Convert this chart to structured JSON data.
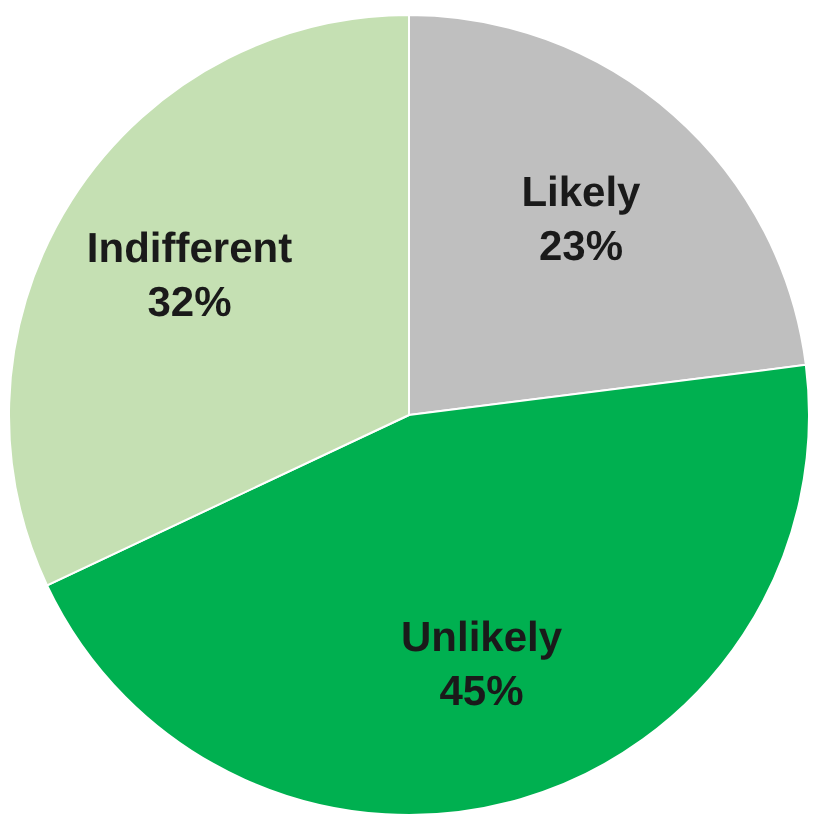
{
  "chart_data": {
    "type": "pie",
    "categories": [
      "Likely",
      "Unlikely",
      "Indifferent"
    ],
    "values": [
      23,
      45,
      32
    ],
    "colors": [
      "#bfbfbf",
      "#00b050",
      "#c5e0b3"
    ],
    "value_labels": [
      "23%",
      "45%",
      "32%"
    ]
  }
}
